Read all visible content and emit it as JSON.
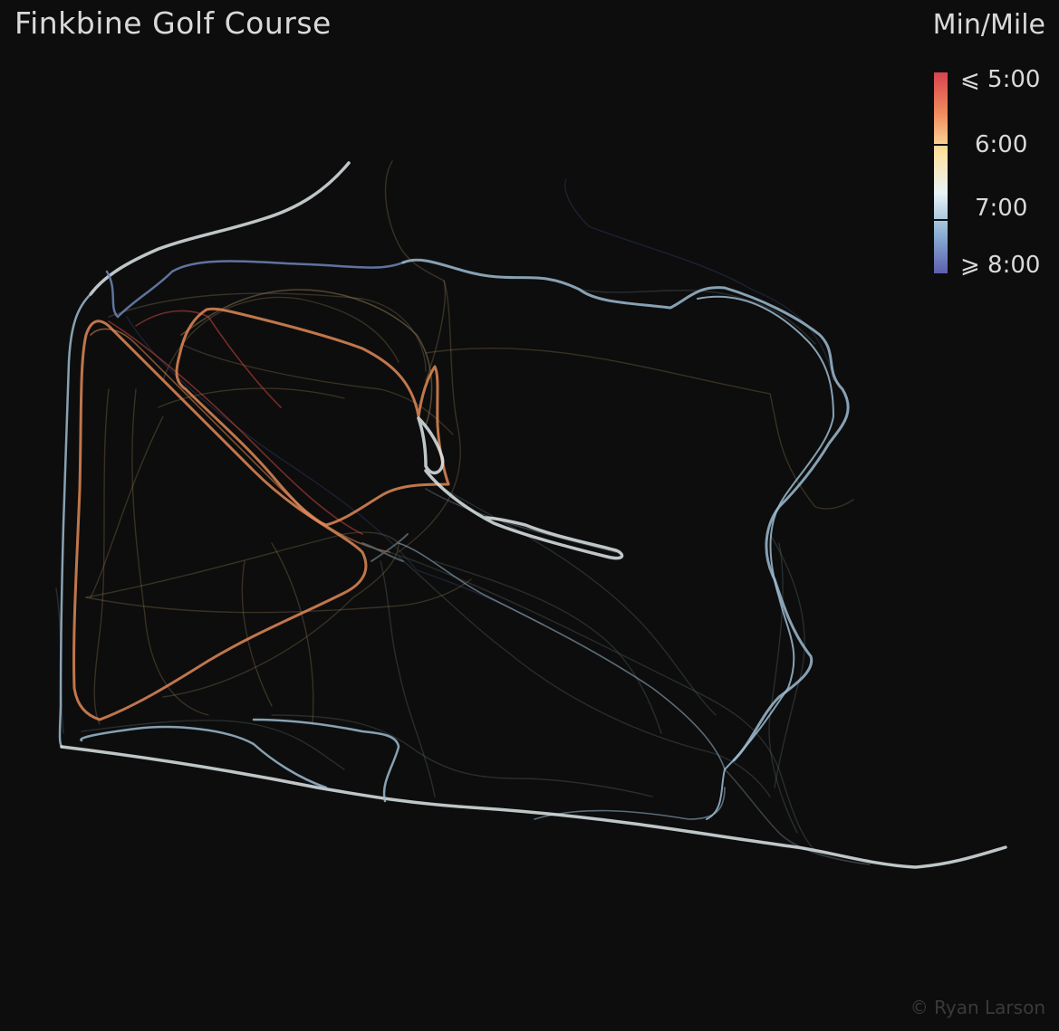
{
  "title": "Finkbine Golf Course",
  "legend": {
    "title": "Min/Mile",
    "labels": [
      "⩽ 5:00",
      "6:00",
      "7:00",
      "⩾ 8:00"
    ],
    "pace_stops_min": [
      5,
      6,
      7,
      8
    ],
    "colors": [
      "#d7434f",
      "#f08a5c",
      "#fde3a2",
      "#e9f3f6",
      "#8db2d4",
      "#5d5fae"
    ]
  },
  "credit": "© Ryan Larson",
  "background": "#0d0d0d",
  "track_colors": {
    "fast_red": "#c8473f",
    "orange": "#e08a57",
    "tan": "#8a7550",
    "white": "#dfe8ea",
    "light_blue": "#9dbcd1",
    "blue": "#6f86b8",
    "dark_blue": "#3a4a78",
    "grey": "#5c6a6e"
  }
}
